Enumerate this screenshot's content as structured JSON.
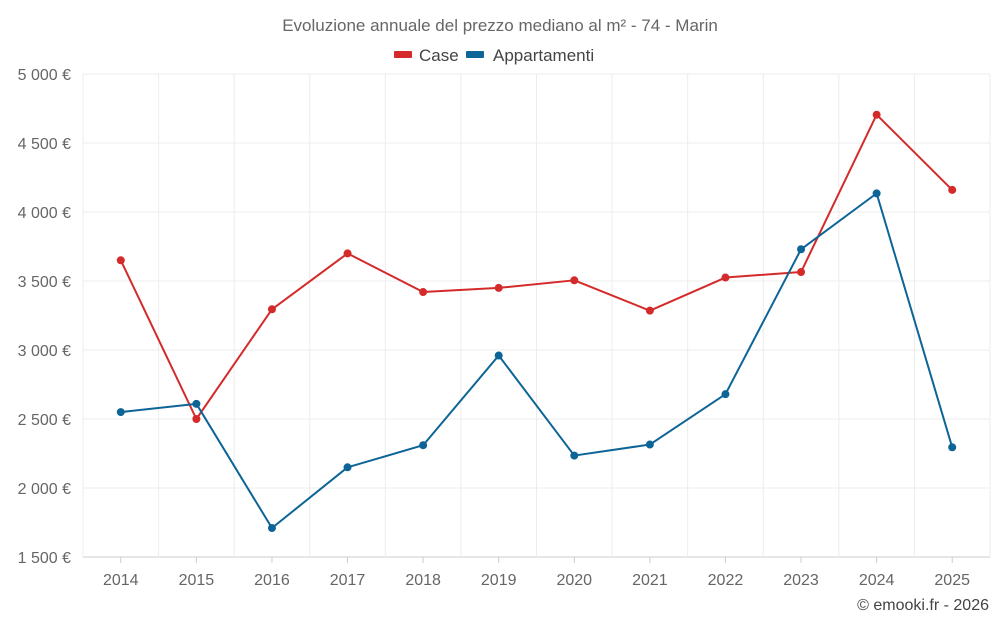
{
  "chart_data": {
    "type": "line",
    "title": "Evoluzione annuale del prezzo mediano al m² - 74 - Marin",
    "categories": [
      "2014",
      "2015",
      "2016",
      "2017",
      "2018",
      "2019",
      "2020",
      "2021",
      "2022",
      "2023",
      "2024",
      "2025"
    ],
    "series": [
      {
        "name": "Case",
        "color": "#d42a2a",
        "values": [
          3650,
          2500,
          3295,
          3700,
          3420,
          3450,
          3505,
          3285,
          3525,
          3565,
          4705,
          4160
        ]
      },
      {
        "name": "Appartamenti",
        "color": "#0d6496",
        "values": [
          2550,
          2610,
          1710,
          2150,
          2310,
          2960,
          2235,
          2315,
          2680,
          3730,
          4135,
          2295
        ]
      }
    ],
    "ylim": [
      1500,
      5000
    ],
    "yticks": [
      1500,
      2000,
      2500,
      3000,
      3500,
      4000,
      4500,
      5000
    ],
    "ytick_labels": [
      "1 500 €",
      "2 000 €",
      "2 500 €",
      "3 000 €",
      "3 500 €",
      "4 000 €",
      "4 500 €",
      "5 000 €"
    ],
    "xlabel": "",
    "ylabel": "",
    "grid": true,
    "legend": "top-center"
  },
  "credit": "© emooki.fr - 2026"
}
